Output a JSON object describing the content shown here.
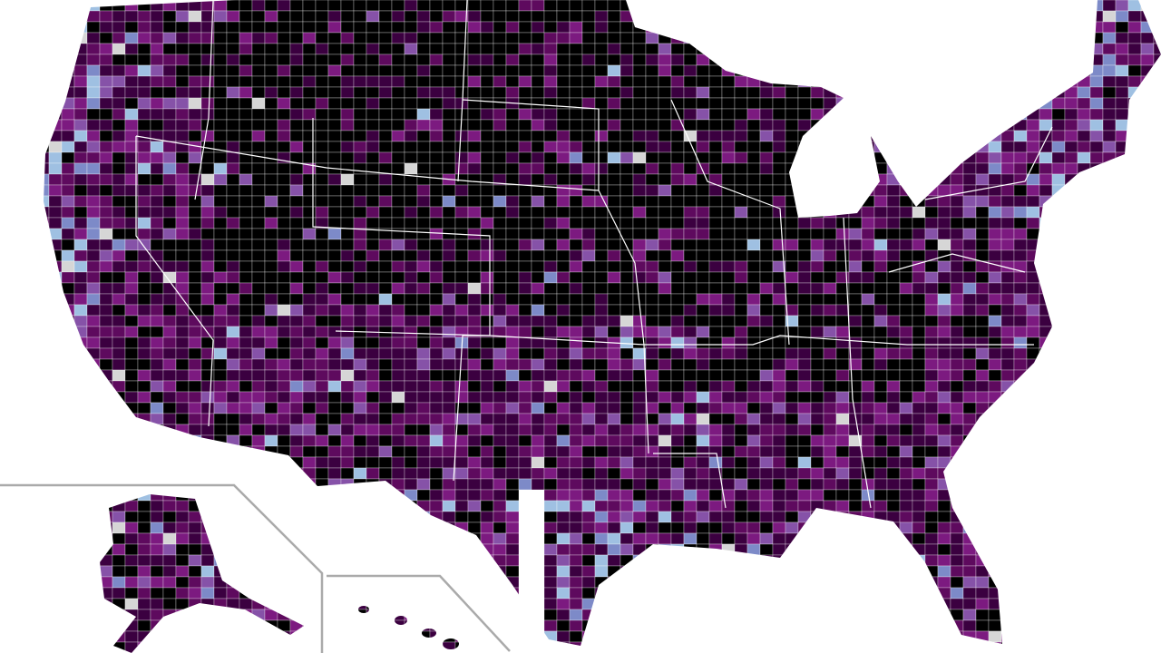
{
  "map": {
    "palette": [
      "#000000",
      "#3b0040",
      "#5e0a5e",
      "#7c1a80",
      "#8652a8",
      "#7d8ac8",
      "#9fc0e2",
      "#d6d6d6"
    ]
  }
}
